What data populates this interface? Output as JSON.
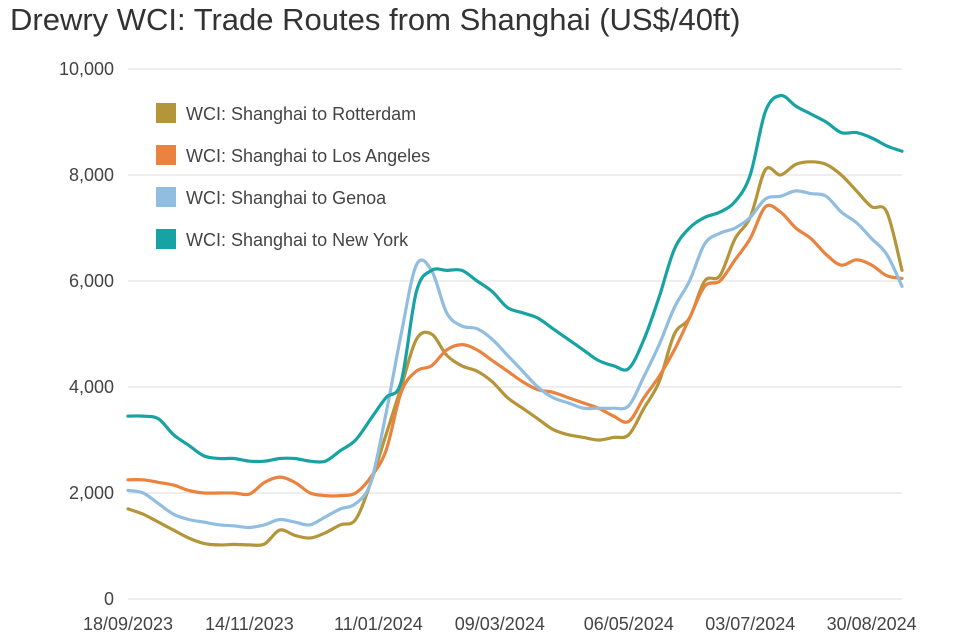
{
  "chart_data": {
    "type": "line",
    "title": "Drewry WCI: Trade Routes from Shanghai (US$/40ft)",
    "xlabel": "",
    "ylabel": "",
    "ylim": [
      0,
      10000
    ],
    "yticks": [
      "0",
      "2,000",
      "4,000",
      "6,000",
      "8,000",
      "10,000"
    ],
    "ytick_values": [
      0,
      2000,
      4000,
      6000,
      8000,
      10000
    ],
    "x_tick_labels": [
      "18/09/2023",
      "14/11/2023",
      "11/01/2024",
      "09/03/2024",
      "06/05/2024",
      "03/07/2024",
      "30/08/2024"
    ],
    "x_tick_indices": [
      0,
      8,
      16.5,
      24.5,
      33,
      41,
      49
    ],
    "grid": true,
    "legend_position": "top-left",
    "series": [
      {
        "name": "WCI: Shanghai to Rotterdam",
        "color": "#b5953a",
        "values": [
          1700,
          1600,
          1450,
          1300,
          1150,
          1050,
          1020,
          1030,
          1020,
          1040,
          1300,
          1200,
          1150,
          1250,
          1400,
          1500,
          2200,
          3100,
          4000,
          4900,
          5000,
          4600,
          4400,
          4300,
          4100,
          3800,
          3600,
          3400,
          3200,
          3100,
          3050,
          3000,
          3050,
          3100,
          3600,
          4100,
          5000,
          5300,
          6000,
          6100,
          6800,
          7200,
          8100,
          8000,
          8200,
          8250,
          8200,
          8000,
          7700,
          7400,
          7300,
          6200
        ]
      },
      {
        "name": "WCI: Shanghai to Los Angeles",
        "color": "#e9833f",
        "values": [
          2250,
          2250,
          2200,
          2150,
          2050,
          2000,
          2000,
          2000,
          1980,
          2200,
          2300,
          2200,
          2000,
          1950,
          1950,
          2000,
          2300,
          2800,
          3900,
          4300,
          4400,
          4700,
          4800,
          4700,
          4500,
          4300,
          4100,
          3950,
          3900,
          3800,
          3700,
          3600,
          3450,
          3350,
          3800,
          4200,
          4700,
          5300,
          5900,
          6000,
          6400,
          6800,
          7400,
          7300,
          7000,
          6800,
          6500,
          6300,
          6400,
          6300,
          6100,
          6050
        ]
      },
      {
        "name": "WCI: Shanghai to Genoa",
        "color": "#90bde0",
        "values": [
          2050,
          2000,
          1800,
          1600,
          1500,
          1450,
          1400,
          1380,
          1350,
          1400,
          1500,
          1450,
          1400,
          1550,
          1700,
          1800,
          2200,
          3500,
          5000,
          6300,
          6200,
          5400,
          5150,
          5100,
          4900,
          4600,
          4300,
          4000,
          3800,
          3700,
          3600,
          3600,
          3600,
          3650,
          4200,
          4800,
          5500,
          6000,
          6700,
          6900,
          7000,
          7200,
          7550,
          7600,
          7700,
          7650,
          7600,
          7300,
          7100,
          6800,
          6500,
          5900
        ]
      },
      {
        "name": "WCI: Shanghai to New York",
        "color": "#17a3a3",
        "values": [
          3450,
          3450,
          3400,
          3100,
          2900,
          2700,
          2650,
          2650,
          2600,
          2600,
          2650,
          2650,
          2600,
          2600,
          2800,
          3000,
          3400,
          3800,
          4100,
          5800,
          6200,
          6200,
          6200,
          6000,
          5800,
          5500,
          5400,
          5300,
          5100,
          4900,
          4700,
          4500,
          4400,
          4350,
          4900,
          5700,
          6600,
          7000,
          7200,
          7300,
          7500,
          8000,
          9200,
          9500,
          9300,
          9150,
          9000,
          8800,
          8800,
          8700,
          8550,
          8450
        ]
      }
    ]
  }
}
